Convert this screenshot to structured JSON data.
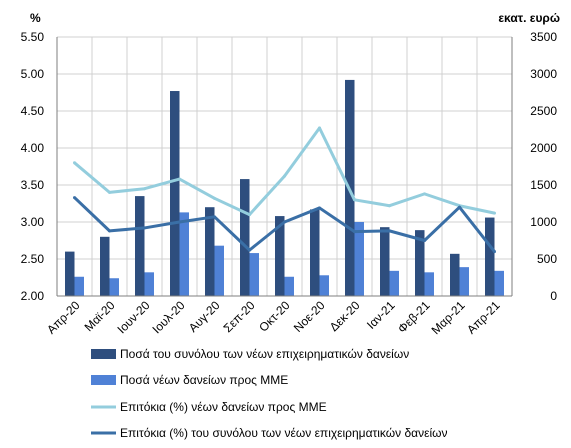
{
  "chart_data": {
    "type": "bar",
    "categories": [
      "Απρ-20",
      "Μαϊ-20",
      "Ιουν-20",
      "Ιουλ-20",
      "Αυγ-20",
      "Σεπ-20",
      "Οκτ-20",
      "Νοε-20",
      "Δεκ-20",
      "Ιαν-21",
      "Φεβ-21",
      "Μαρ-21",
      "Απρ-21"
    ],
    "left_axis": {
      "unit_label": "%",
      "ylim": [
        2.0,
        5.5
      ],
      "ticks": [
        "2.00",
        "2.50",
        "3.00",
        "3.50",
        "4.00",
        "4.50",
        "5.00",
        "5.50"
      ]
    },
    "right_axis": {
      "unit_label": "εκατ. ευρώ",
      "ylim": [
        0,
        3500
      ],
      "ticks": [
        "0",
        "500",
        "1000",
        "1500",
        "2000",
        "2500",
        "3000",
        "3500"
      ]
    },
    "grid": true,
    "legend_position": "bottom",
    "series": [
      {
        "name": "Ποσά του συνόλου των νέων επιχειρηματικών δανείων",
        "type": "bar",
        "axis": "right",
        "color": "#2e4e7e",
        "values": [
          600,
          800,
          1350,
          2770,
          1200,
          1580,
          1080,
          1170,
          2920,
          930,
          890,
          570,
          1060
        ]
      },
      {
        "name": "Ποσά νέων δανείων προς ΜΜΕ",
        "type": "bar",
        "axis": "right",
        "color": "#4f81d6",
        "values": [
          260,
          240,
          320,
          1130,
          680,
          580,
          260,
          280,
          1000,
          340,
          320,
          390,
          340
        ]
      },
      {
        "name": "Επιτόκια (%) νέων δανείων προς ΜΜΕ",
        "type": "line",
        "axis": "left",
        "color": "#93cddd",
        "values": [
          3.8,
          3.4,
          3.45,
          3.58,
          3.32,
          3.1,
          3.62,
          4.27,
          3.3,
          3.22,
          3.38,
          3.22,
          3.12
        ]
      },
      {
        "name": "Επιτόκια (%) του συνόλου των νέων επιχειρηματικών δανείων",
        "type": "line",
        "axis": "left",
        "color": "#3a6fa6",
        "values": [
          3.33,
          2.88,
          2.92,
          3.0,
          3.07,
          2.62,
          3.0,
          3.19,
          2.87,
          2.88,
          2.75,
          3.2,
          2.6
        ]
      }
    ]
  }
}
